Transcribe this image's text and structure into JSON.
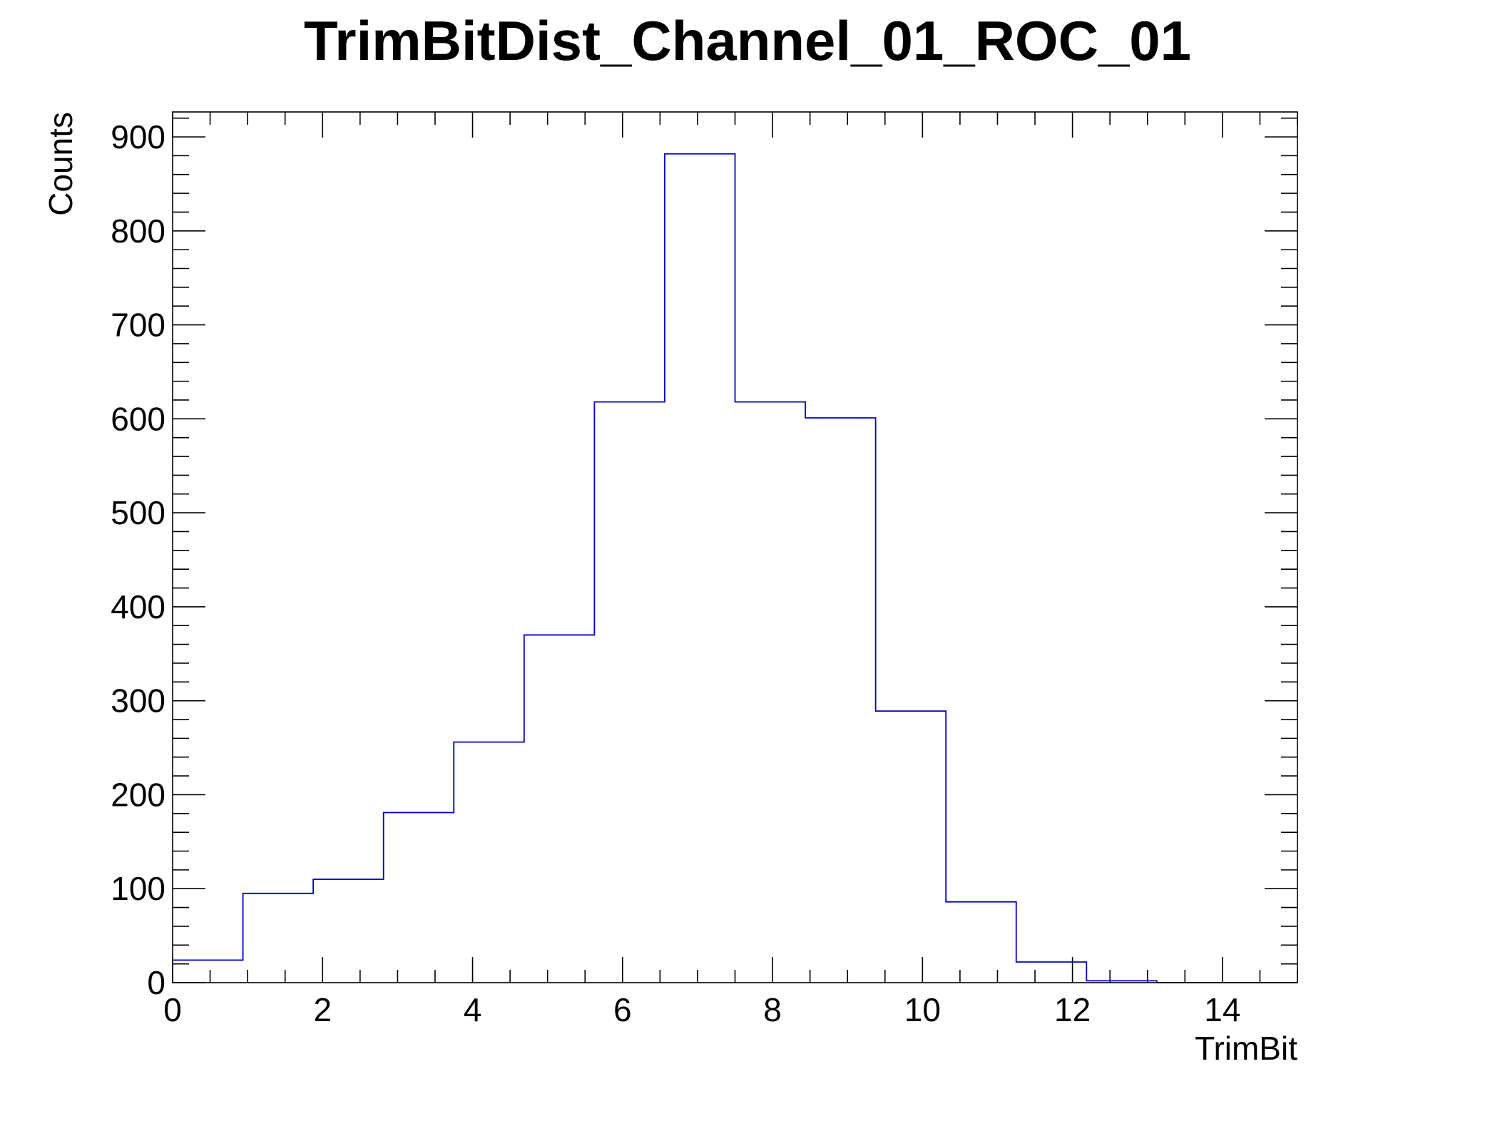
{
  "chart_data": {
    "type": "bar",
    "title": "TrimBitDist_Channel_01_ROC_01",
    "xlabel": "TrimBit",
    "ylabel": "Counts",
    "xlim": [
      0,
      15
    ],
    "ylim": [
      0,
      900
    ],
    "x_ticks": [
      "0",
      "2",
      "4",
      "6",
      "8",
      "10",
      "12",
      "14"
    ],
    "y_ticks": [
      "0",
      "100",
      "200",
      "300",
      "400",
      "500",
      "600",
      "700",
      "800",
      "900"
    ],
    "bin_edges": [
      0,
      0.9375,
      1.875,
      2.8125,
      3.75,
      4.6875,
      5.625,
      6.5625,
      7.5,
      8.4375,
      9.375,
      10.3125,
      11.25,
      12.1875,
      13.125,
      14.0625,
      15
    ],
    "values": [
      24,
      95,
      110,
      181,
      256,
      370,
      618,
      882,
      618,
      601,
      289,
      86,
      22,
      2,
      0,
      0
    ],
    "colors": {
      "line": "#0000cc",
      "frame": "#000000",
      "background": "#ffffff"
    },
    "grid": false,
    "legend": "none"
  }
}
